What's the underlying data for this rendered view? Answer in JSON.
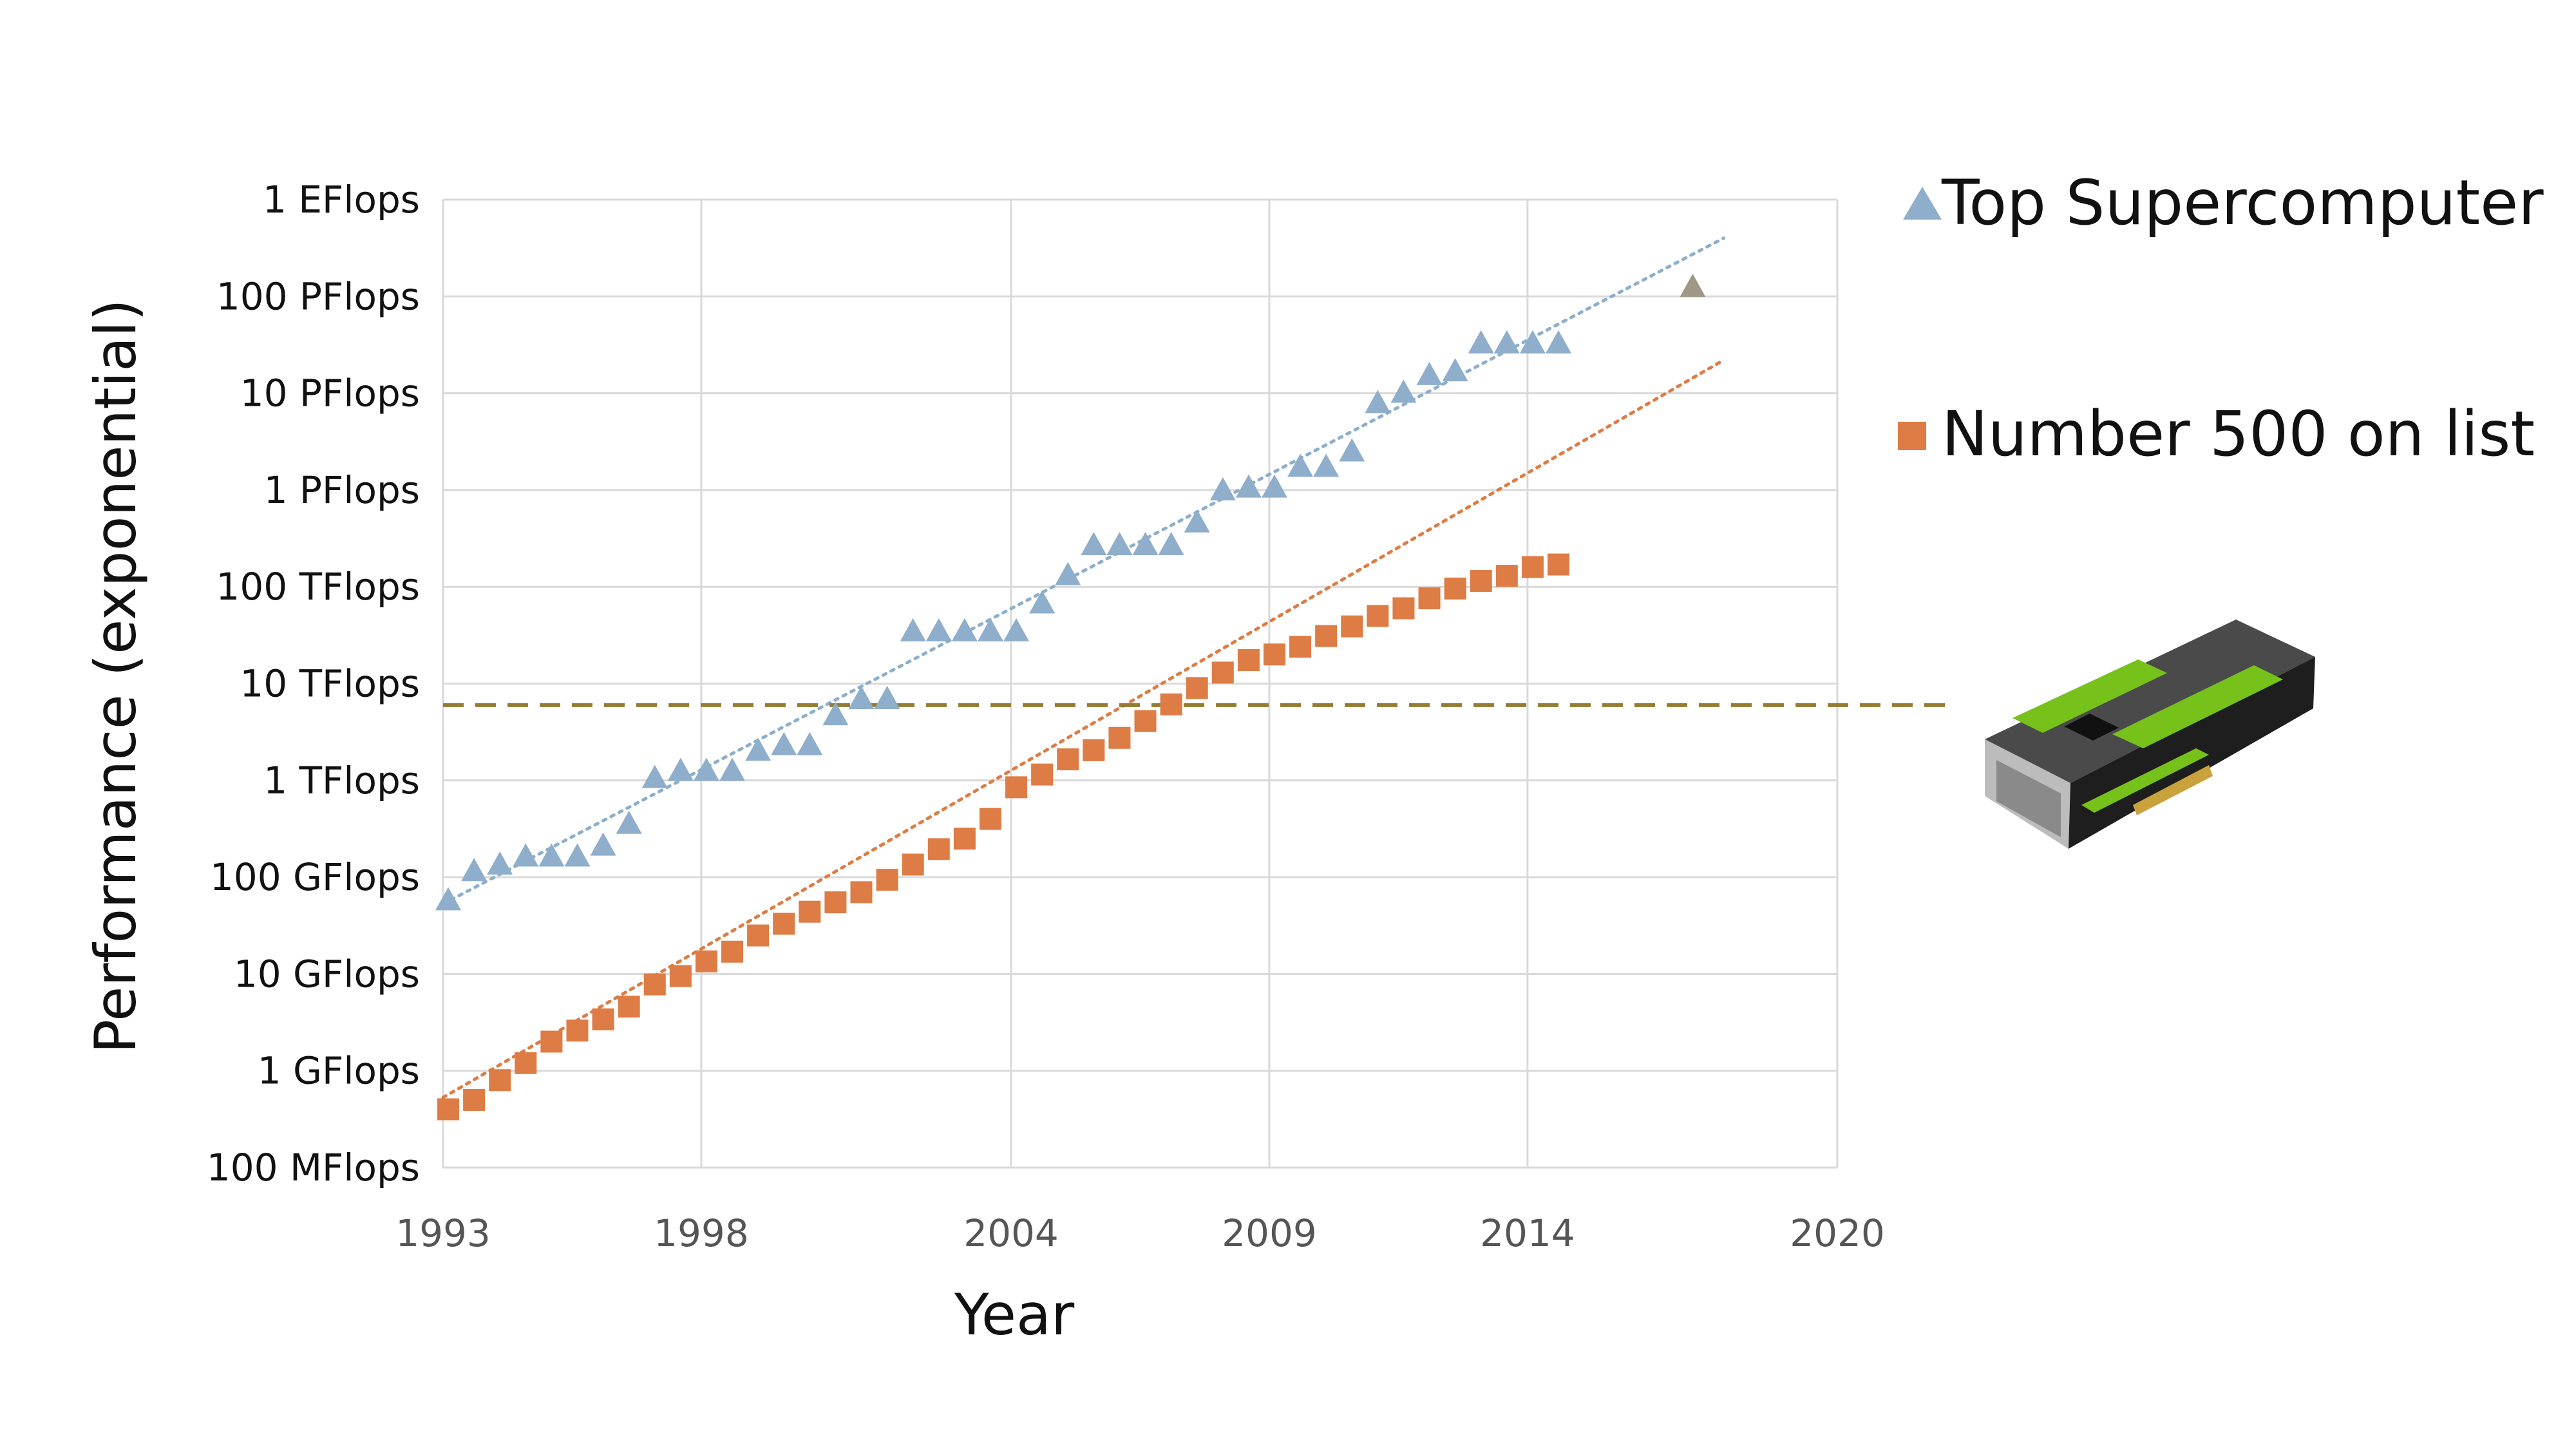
{
  "chart_data": {
    "type": "scatter",
    "xlabel": "Year",
    "ylabel": "Performance (exponential)",
    "y_scale": "log10",
    "y_unit": "Flops",
    "xlim": [
      1993,
      2020
    ],
    "ylim": [
      100000000.0,
      1e+18
    ],
    "x_ticks": [
      1993,
      1998,
      2004,
      2009,
      2014,
      2020
    ],
    "y_ticks": [
      {
        "value": 100000000.0,
        "label": "100 MFlops"
      },
      {
        "value": 1000000000.0,
        "label": "1 GFlops"
      },
      {
        "value": 10000000000.0,
        "label": "10 GFlops"
      },
      {
        "value": 100000000000.0,
        "label": "100 GFlops"
      },
      {
        "value": 1000000000000.0,
        "label": "1 TFlops"
      },
      {
        "value": 10000000000000.0,
        "label": "10 TFlops"
      },
      {
        "value": 100000000000000.0,
        "label": "100 TFlops"
      },
      {
        "value": 1000000000000000.0,
        "label": "1 PFlops"
      },
      {
        "value": 1e+16,
        "label": "10 PFlops"
      },
      {
        "value": 1e+17,
        "label": "100 PFlops"
      },
      {
        "value": 1e+18,
        "label": "1 EFlops"
      }
    ],
    "grid": true,
    "legend_position": "right",
    "series": [
      {
        "name": "Top Supercomputer",
        "marker": "triangle",
        "color": "#8eaecb",
        "trendline": {
          "style": "dotted",
          "color": "#8eaecb",
          "x": [
            1993,
            2017.8
          ],
          "y": [
            53000000000.0,
            4e+17
          ]
        },
        "x": [
          1993.1,
          1993.6,
          1994.1,
          1994.6,
          1995.1,
          1995.6,
          1996.1,
          1996.6,
          1997.1,
          1997.6,
          1998.1,
          1998.6,
          1999.1,
          1999.6,
          2000.1,
          2000.6,
          2001.1,
          2001.6,
          2002.1,
          2002.6,
          2003.1,
          2003.6,
          2004.1,
          2004.6,
          2005.1,
          2005.6,
          2006.1,
          2006.6,
          2007.1,
          2007.6,
          2008.1,
          2008.6,
          2009.1,
          2009.6,
          2010.1,
          2010.6,
          2011.1,
          2011.6,
          2012.1,
          2012.6,
          2013.1,
          2013.6,
          2014.1,
          2014.6
        ],
        "y": [
          60000000000.0,
          120000000000.0,
          140000000000.0,
          170000000000.0,
          170000000000.0,
          170000000000.0,
          220000000000.0,
          370000000000.0,
          1100000000000.0,
          1300000000000.0,
          1300000000000.0,
          1300000000000.0,
          2100000000000.0,
          2400000000000.0,
          2400000000000.0,
          4900000000000.0,
          7200000000000.0,
          7200000000000.0,
          36000000000000.0,
          36000000000000.0,
          36000000000000.0,
          36000000000000.0,
          36000000000000.0,
          70000000000000.0,
          137000000000000.0,
          280000000000000.0,
          280000000000000.0,
          280000000000000.0,
          280000000000000.0,
          480000000000000.0,
          1030000000000000.0,
          1100000000000000.0,
          1100000000000000.0,
          1800000000000000.0,
          1800000000000000.0,
          2600000000000000.0,
          8200000000000000.0,
          1.05e+16,
          1.6e+16,
          1.75e+16,
          3.4e+16,
          3.4e+16,
          3.4e+16,
          3.4e+16
        ]
      },
      {
        "name": "Number 500 on list",
        "marker": "square",
        "color": "#dd7c44",
        "trendline": {
          "style": "dotted",
          "color": "#dd7c44",
          "x": [
            1993,
            2017.8
          ],
          "y": [
            530000000.0,
            2.2e+16
          ]
        },
        "x": [
          1993.1,
          1993.6,
          1994.1,
          1994.6,
          1995.1,
          1995.6,
          1996.1,
          1996.6,
          1997.1,
          1997.6,
          1998.1,
          1998.6,
          1999.1,
          1999.6,
          2000.1,
          2000.6,
          2001.1,
          2001.6,
          2002.1,
          2002.6,
          2003.1,
          2003.6,
          2004.1,
          2004.6,
          2005.1,
          2005.6,
          2006.1,
          2006.6,
          2007.1,
          2007.6,
          2008.1,
          2008.6,
          2009.1,
          2009.6,
          2010.1,
          2010.6,
          2011.1,
          2011.6,
          2012.1,
          2012.6,
          2013.1,
          2013.6,
          2014.1,
          2014.6
        ],
        "y": [
          400000000.0,
          500000000.0,
          800000000.0,
          1200000000.0,
          2000000000.0,
          2600000000.0,
          3400000000.0,
          4600000000.0,
          7800000000.0,
          9500000000.0,
          13500000000.0,
          17000000000.0,
          25000000000.0,
          33000000000.0,
          44000000000.0,
          55000000000.0,
          70000000000.0,
          94000000000.0,
          135000000000.0,
          195000000000.0,
          250000000000.0,
          400000000000.0,
          850000000000.0,
          1150000000000.0,
          1650000000000.0,
          2050000000000.0,
          2750000000000.0,
          4100000000000.0,
          6100000000000.0,
          9000000000000.0,
          13000000000000.0,
          17500000000000.0,
          20000000000000.0,
          24000000000000.0,
          31000000000000.0,
          39000000000000.0,
          50000000000000.0,
          60000000000000.0,
          76000000000000.0,
          96000000000000.0,
          115000000000000.0,
          130000000000000.0,
          160000000000000.0,
          170000000000000.0
        ]
      }
    ],
    "annotations": [
      {
        "kind": "point",
        "marker": "triangle",
        "color": "#9e9885",
        "x": 2017.2,
        "y": 1.3e+17
      },
      {
        "kind": "hline",
        "style": "dashed",
        "color": "#957c32",
        "y": 6000000000000.0
      }
    ]
  },
  "legend": {
    "items": [
      {
        "label": "Top Supercomputer",
        "marker": "triangle",
        "color": "#8eaecb"
      },
      {
        "label": "Number 500 on list",
        "marker": "square",
        "color": "#dd7c44"
      }
    ]
  },
  "gpu_card": {
    "icon": "gpu-card-icon",
    "body_color": "#2b2b2b",
    "accent_color": "#76c21a",
    "connector_color": "#c9a23c"
  }
}
